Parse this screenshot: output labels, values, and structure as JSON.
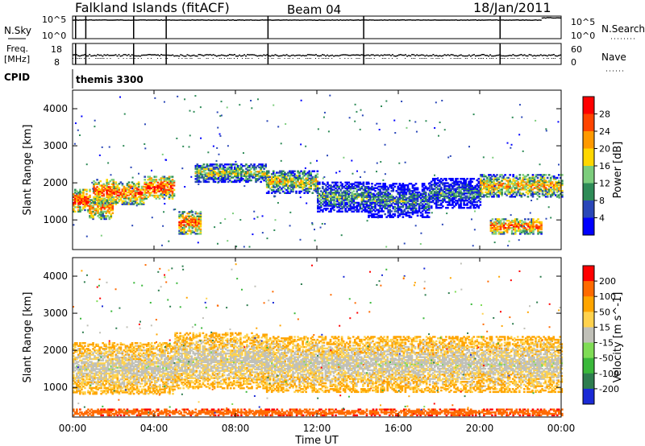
{
  "header": {
    "site": "Falkland Islands (fitACF)",
    "beam": "Beam 04",
    "date": "18/Jan/2011"
  },
  "sky_panel": {
    "left_label": "N.Sky",
    "right_label": "N.Search",
    "left_ticks": [
      "10^5",
      "10^0"
    ],
    "right_ticks": [
      "10^5",
      "10^0"
    ]
  },
  "freq_panel": {
    "left_label_1": "Freq.",
    "left_label_2": "[MHz]",
    "right_label": "Nave",
    "left_ticks": [
      "18",
      "8"
    ],
    "right_ticks": [
      "60",
      "0"
    ]
  },
  "cpid_panel": {
    "left_label": "CPID",
    "program": "themis 3300"
  },
  "x_axis": {
    "title": "Time UT",
    "ticks": [
      "00:00",
      "04:00",
      "08:00",
      "12:00",
      "16:00",
      "20:00",
      "00:00"
    ]
  },
  "power_panel": {
    "ylabel": "Slant Range [km]",
    "yticks": [
      "4000",
      "3000",
      "2000",
      "1000"
    ],
    "colorbar_label": "Power [dB]",
    "colorbar_ticks": [
      "28",
      "24",
      "20",
      "16",
      "12",
      "8",
      "4"
    ],
    "colors": [
      "#0000ff",
      "#2a47b8",
      "#2e8b57",
      "#7ccd7c",
      "#ffd700",
      "#ff9900",
      "#ff4400",
      "#ff0000"
    ]
  },
  "velocity_panel": {
    "ylabel": "Slant Range [km]",
    "yticks": [
      "4000",
      "3000",
      "2000",
      "1000"
    ],
    "colorbar_label": "Velocity [m s^-1]",
    "colorbar_ticks": [
      "200",
      "100",
      "50",
      "15",
      "-15",
      "-50",
      "-100",
      "-200"
    ],
    "colors": [
      "#1a2ad6",
      "#2e7d4f",
      "#3ab83a",
      "#7fdc55",
      "#c0c0b8",
      "#ffd24d",
      "#ffa500",
      "#ff6a00",
      "#ff0000"
    ]
  },
  "chart_data": [
    {
      "type": "line",
      "title": "N.Sky / N.Search",
      "x": [
        "00:00",
        "04:00",
        "08:00",
        "12:00",
        "16:00",
        "20:00",
        "00:00"
      ],
      "y_axis_left": [
        "10^0",
        "10^5"
      ],
      "y_axis_right": [
        "10^0",
        "10^5"
      ],
      "ylim": [
        0,
        5
      ],
      "series": [
        {
          "name": "N.Sky",
          "values": [
            4.2,
            4.2,
            4.3,
            4.3,
            4.2,
            4.2,
            4.3
          ]
        },
        {
          "name": "N.Search",
          "values": [
            4.1,
            4.1,
            4.2,
            4.2,
            4.1,
            4.3,
            4.8
          ]
        }
      ],
      "x_gaps_hours": [
        0.15,
        0.65,
        3.0,
        4.6,
        9.6,
        14.3,
        21.0
      ]
    },
    {
      "type": "scatter",
      "title": "Freq. [MHz] / Nave",
      "y_axis_left": [
        8,
        18
      ],
      "y_axis_right": [
        0,
        60
      ],
      "series": [
        {
          "name": "Freq.",
          "values": [
            12,
            12,
            12,
            12,
            12,
            12,
            12
          ]
        },
        {
          "name": "Nave",
          "values": [
            22,
            22,
            22,
            22,
            22,
            22,
            22
          ]
        }
      ]
    },
    {
      "type": "heatmap",
      "title": "Power [dB]",
      "xlabel": "Time UT",
      "ylabel": "Slant Range [km]",
      "xlim_hours": [
        0,
        24
      ],
      "ylim": [
        200,
        4500
      ],
      "colorbar_range": [
        0,
        30
      ],
      "bands": [
        {
          "t_start": 0.0,
          "t_end": 0.8,
          "r_center": 1500,
          "half_width": 300,
          "value": 26
        },
        {
          "t_start": 0.8,
          "t_end": 2.0,
          "r_center": 1300,
          "half_width": 300,
          "value": 22
        },
        {
          "t_start": 1.0,
          "t_end": 2.0,
          "r_center": 1750,
          "half_width": 320,
          "value": 25
        },
        {
          "t_start": 2.0,
          "t_end": 3.5,
          "r_center": 1700,
          "half_width": 300,
          "value": 24
        },
        {
          "t_start": 3.5,
          "t_end": 5.0,
          "r_center": 1850,
          "half_width": 300,
          "value": 26
        },
        {
          "t_start": 5.2,
          "t_end": 6.3,
          "r_center": 900,
          "half_width": 300,
          "value": 24
        },
        {
          "t_start": 6.0,
          "t_end": 9.5,
          "r_center": 2250,
          "half_width": 250,
          "value": 16
        },
        {
          "t_start": 9.5,
          "t_end": 12.0,
          "r_center": 2000,
          "half_width": 300,
          "value": 18
        },
        {
          "t_start": 12.0,
          "t_end": 14.5,
          "r_center": 1600,
          "half_width": 400,
          "value": 12
        },
        {
          "t_start": 14.5,
          "t_end": 17.5,
          "r_center": 1500,
          "half_width": 450,
          "value": 10
        },
        {
          "t_start": 17.5,
          "t_end": 20.0,
          "r_center": 1700,
          "half_width": 400,
          "value": 9
        },
        {
          "t_start": 20.0,
          "t_end": 24.0,
          "r_center": 1900,
          "half_width": 300,
          "value": 20
        },
        {
          "t_start": 20.5,
          "t_end": 23.0,
          "r_center": 800,
          "half_width": 200,
          "value": 24
        }
      ]
    },
    {
      "type": "heatmap",
      "title": "Velocity [m s^-1]",
      "xlabel": "Time UT",
      "ylabel": "Slant Range [km]",
      "xlim_hours": [
        0,
        24
      ],
      "ylim": [
        200,
        4500
      ],
      "colorbar_range": [
        -200,
        200
      ],
      "bands": [
        {
          "t_start": 0.0,
          "t_end": 5.0,
          "r_center": 1500,
          "half_width": 700,
          "value": 0
        },
        {
          "t_start": 5.0,
          "t_end": 9.5,
          "r_center": 1700,
          "half_width": 750,
          "value": 0
        },
        {
          "t_start": 9.5,
          "t_end": 24.0,
          "r_center": 1600,
          "half_width": 750,
          "value": 0
        },
        {
          "t_start": 0.0,
          "t_end": 24.0,
          "r_center": 300,
          "half_width": 80,
          "value": -80
        }
      ]
    }
  ]
}
